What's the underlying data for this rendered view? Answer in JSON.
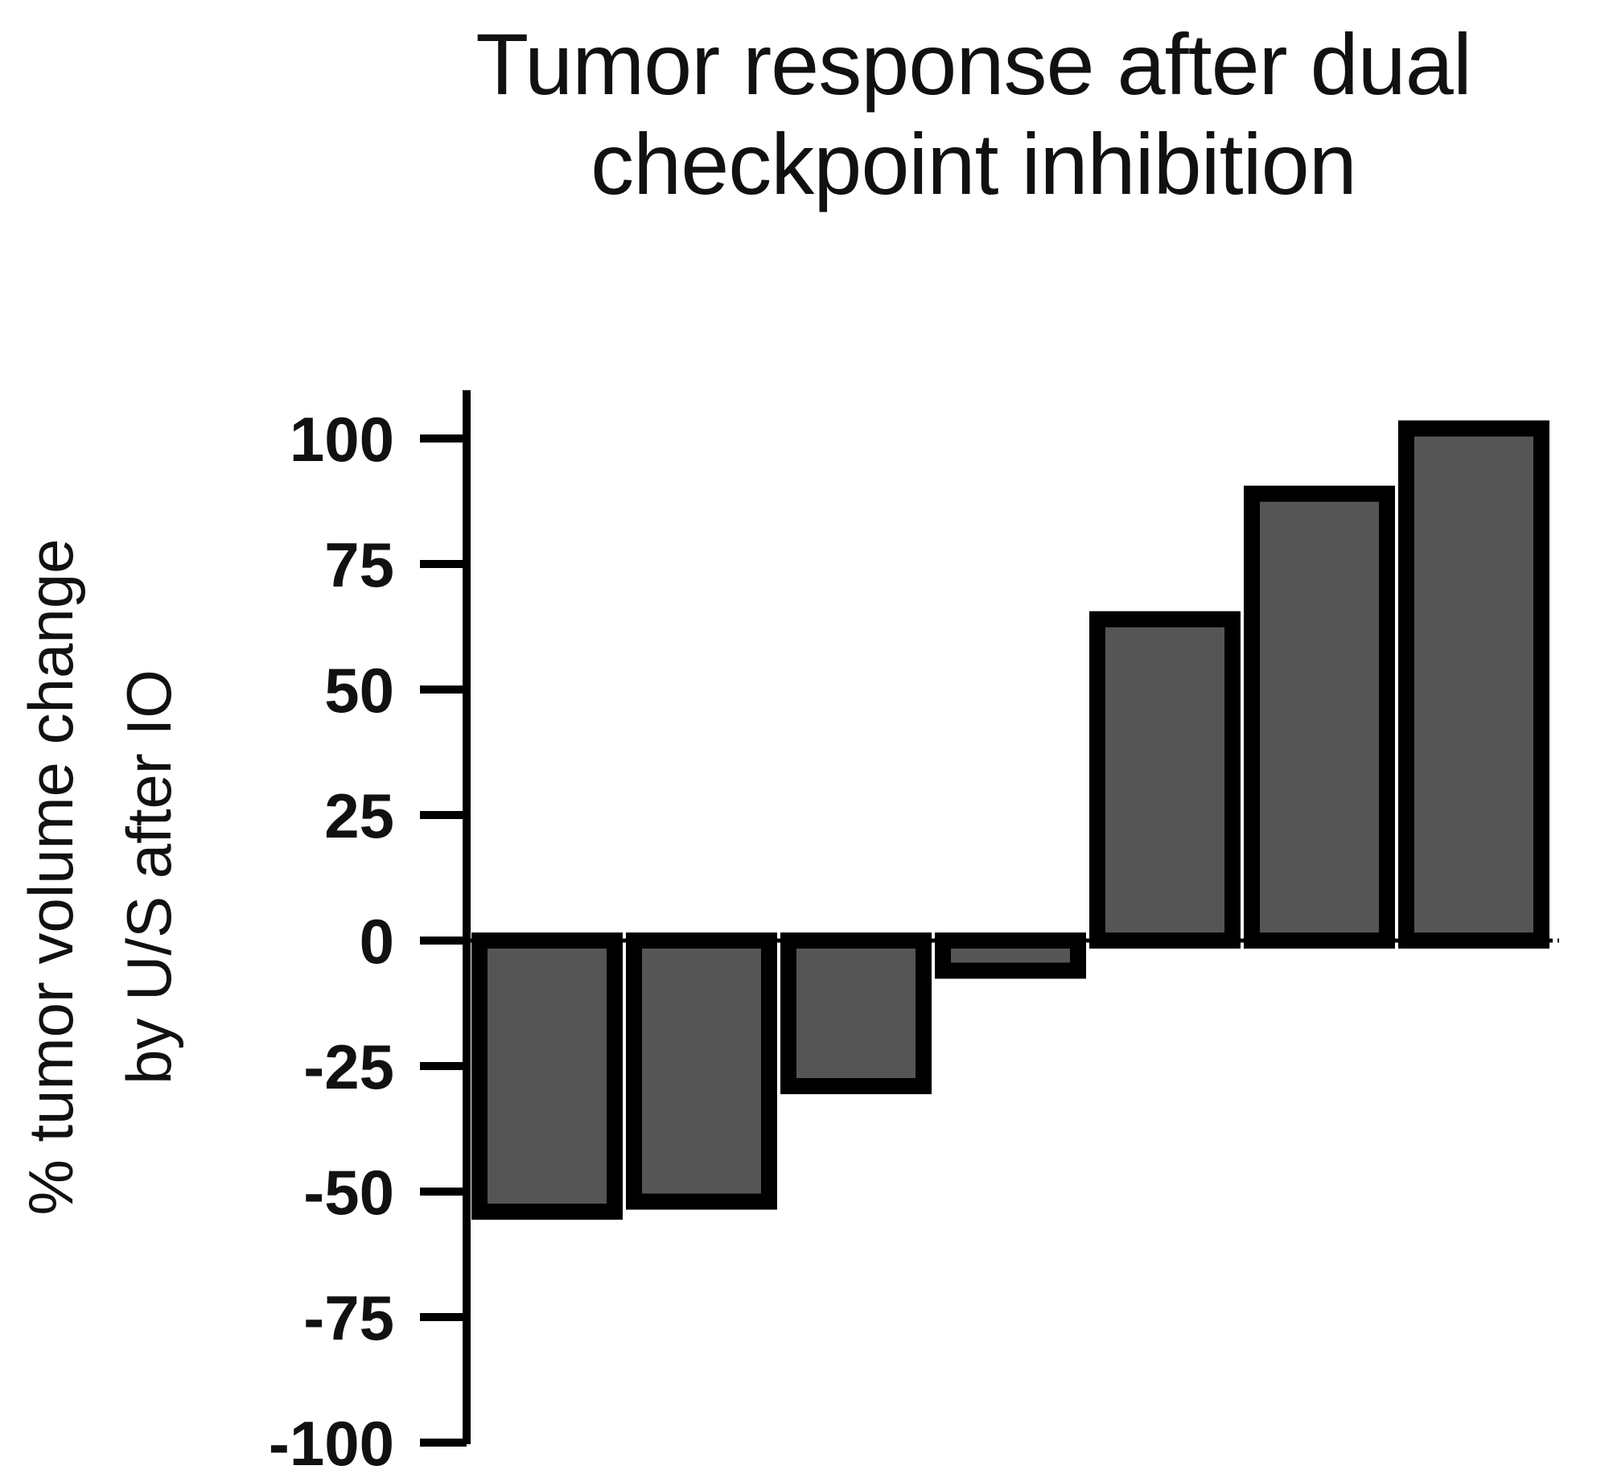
{
  "chart_data": {
    "type": "bar",
    "title_lines": [
      "Tumor response after dual",
      "checkpoint inhibition"
    ],
    "ylabel_lines": [
      "% tumor volume change",
      "by U/S after IO"
    ],
    "xlabel": "",
    "ylim": [
      -100,
      100
    ],
    "yticks": [
      100,
      75,
      50,
      25,
      0,
      -25,
      -50,
      -75,
      -100
    ],
    "tick_labels": [
      "100",
      "75",
      "50",
      "25",
      "0",
      "-25",
      "-50",
      "-75",
      "-100"
    ],
    "values": [
      -54,
      -52,
      -29,
      -6,
      64,
      89,
      102
    ],
    "zero_line": "dotted",
    "grid": false,
    "legend": "none",
    "colors": {
      "bar_fill": "#555555",
      "bar_stroke": "#000000",
      "axis": "#000000",
      "text": "#111111"
    }
  }
}
